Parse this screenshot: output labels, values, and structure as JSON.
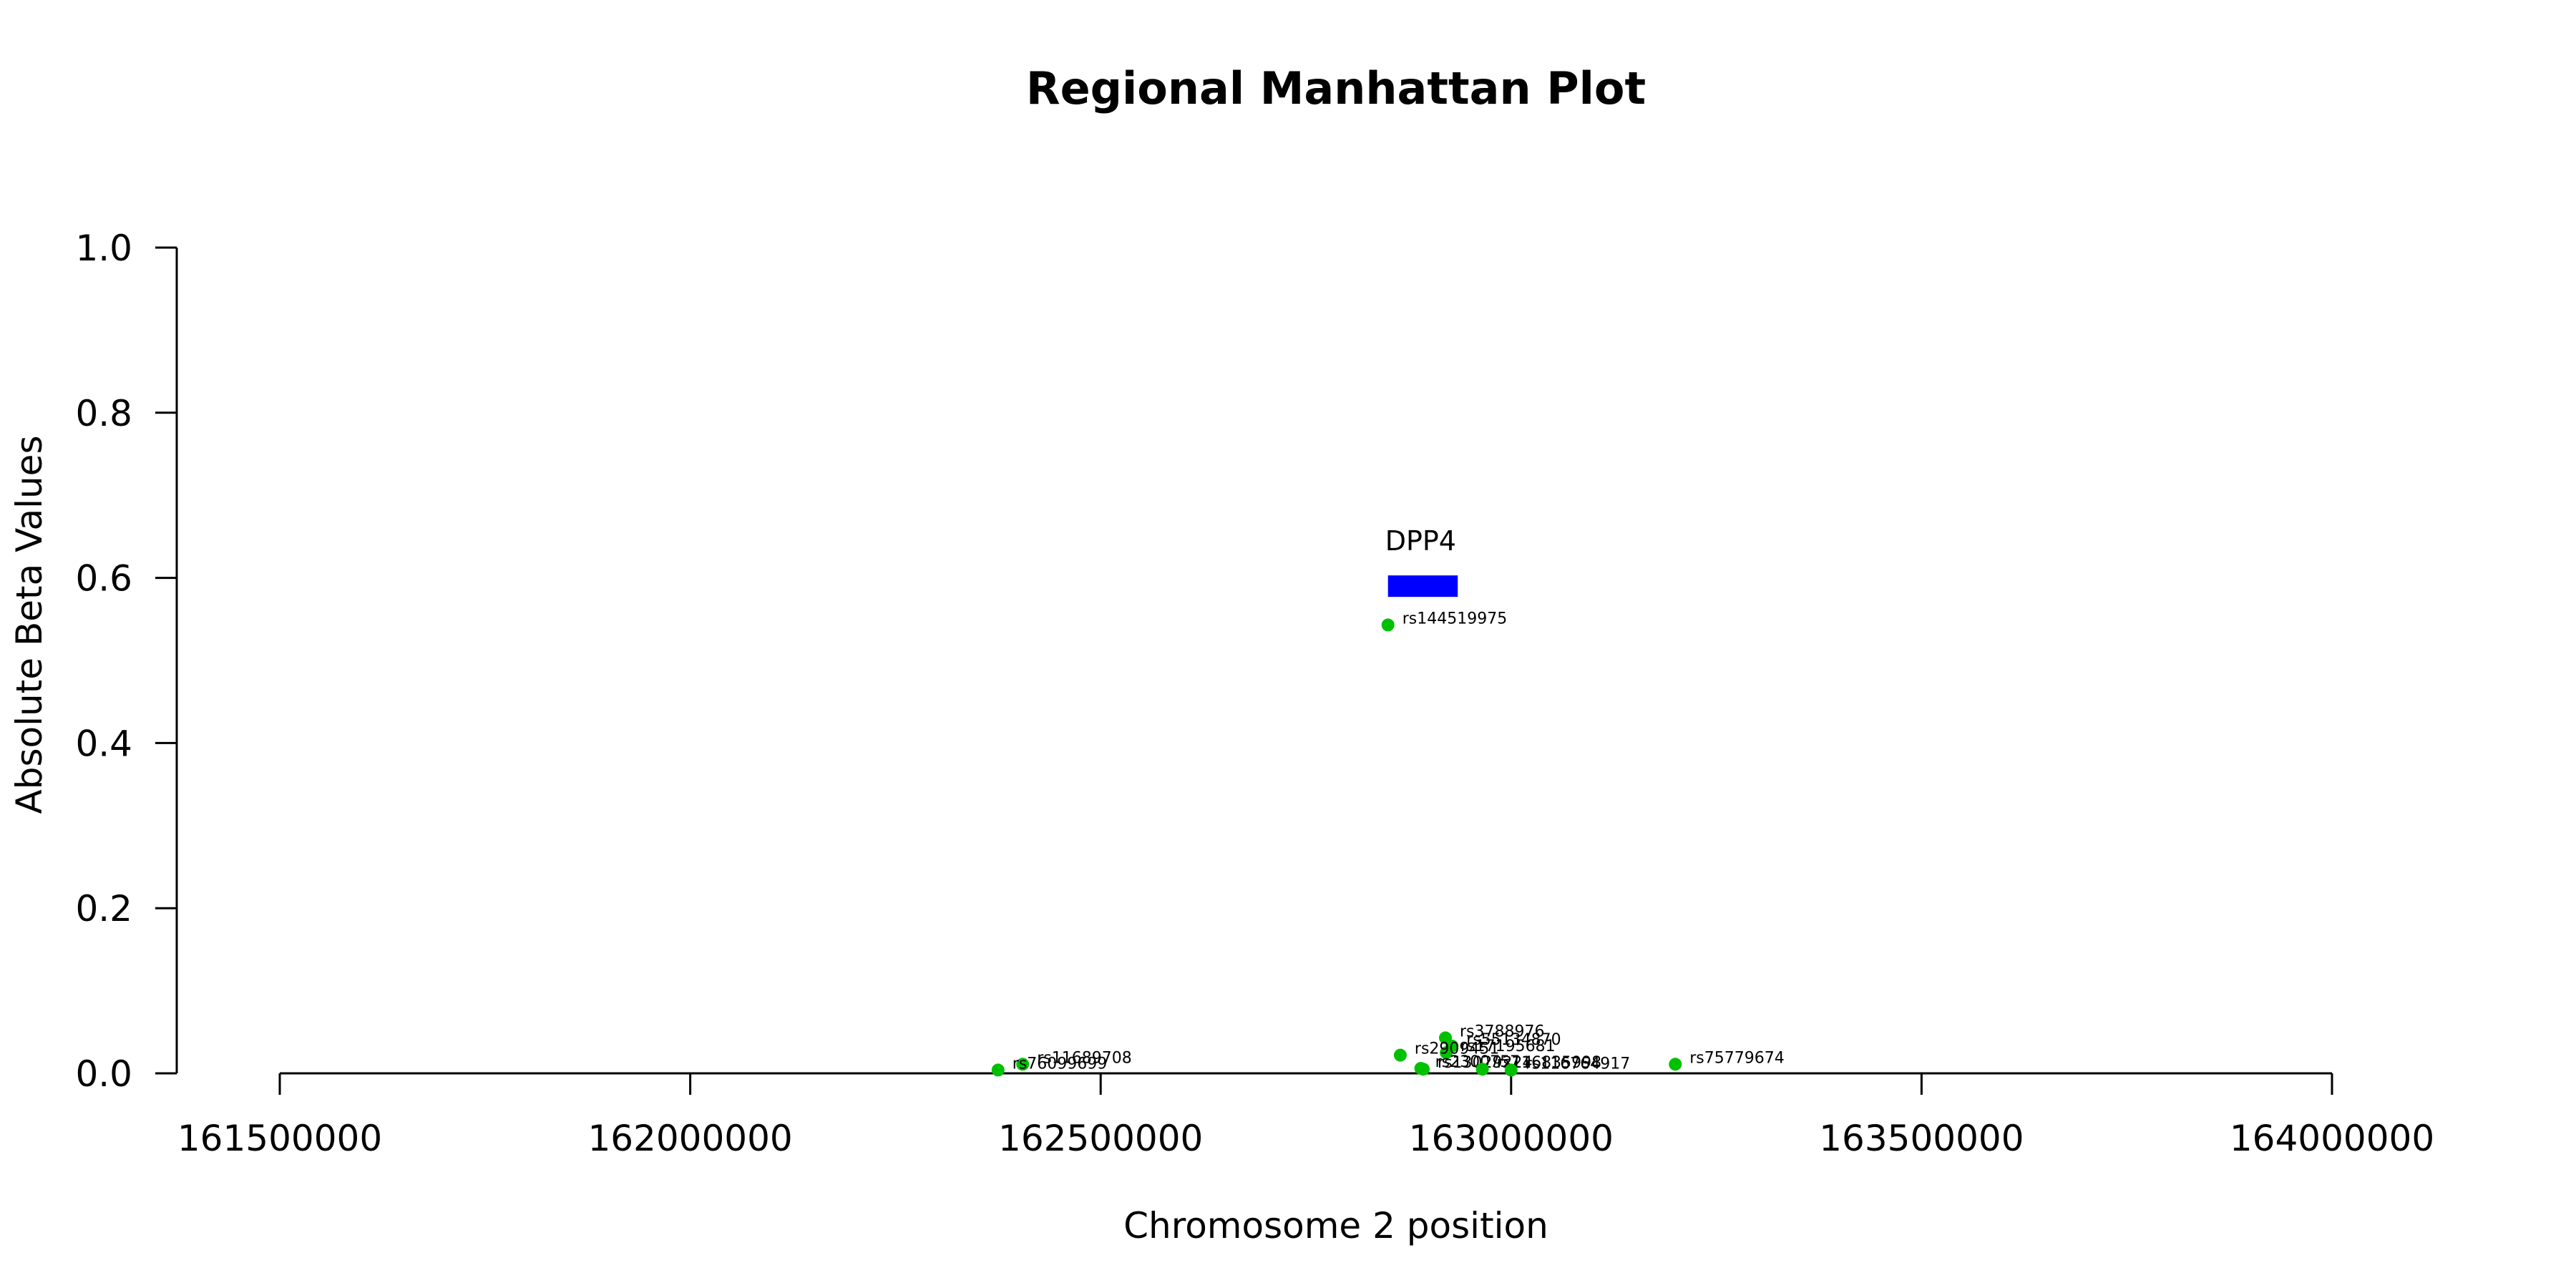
{
  "chart_data": {
    "type": "scatter",
    "title": "Regional Manhattan Plot",
    "xlabel": "Chromosome 2 position",
    "ylabel": "Absolute Beta Values",
    "xlim": [
      161500000,
      164000000
    ],
    "ylim": [
      0.0,
      1.0
    ],
    "x_ticks": [
      161500000,
      162000000,
      162500000,
      163000000,
      163500000,
      164000000
    ],
    "x_tick_labels": [
      "161500000",
      "162000000",
      "162500000",
      "163000000",
      "163500000",
      "164000000"
    ],
    "y_ticks": [
      0.0,
      0.2,
      0.4,
      0.6,
      0.8,
      1.0
    ],
    "y_tick_labels": [
      "0.0",
      "0.2",
      "0.4",
      "0.6",
      "0.8",
      "1.0"
    ],
    "point_color": "#00c000",
    "gene_color": "#0000ff",
    "genes": [
      {
        "name": "DPP4",
        "start": 162850000,
        "end": 162935000,
        "y": 0.59
      }
    ],
    "points": [
      {
        "label": "rs144519975",
        "x": 162850000,
        "y": 0.543
      },
      {
        "label": "rs3788976",
        "x": 162920000,
        "y": 0.043
      },
      {
        "label": "rs55134870",
        "x": 162928000,
        "y": 0.033
      },
      {
        "label": "rs17195681",
        "x": 162921000,
        "y": 0.025
      },
      {
        "label": "rs2909451",
        "x": 162865000,
        "y": 0.022
      },
      {
        "label": "rs2300757",
        "x": 162890000,
        "y": 0.006
      },
      {
        "label": "rs13029224",
        "x": 162893000,
        "y": 0.005
      },
      {
        "label": "rs116835998",
        "x": 162965000,
        "y": 0.005
      },
      {
        "label": "rs116764917",
        "x": 163000000,
        "y": 0.004
      },
      {
        "label": "rs75779674",
        "x": 163200000,
        "y": 0.011
      },
      {
        "label": "rs11689708",
        "x": 162405000,
        "y": 0.011
      },
      {
        "label": "rs76099699",
        "x": 162375000,
        "y": 0.004
      }
    ]
  }
}
